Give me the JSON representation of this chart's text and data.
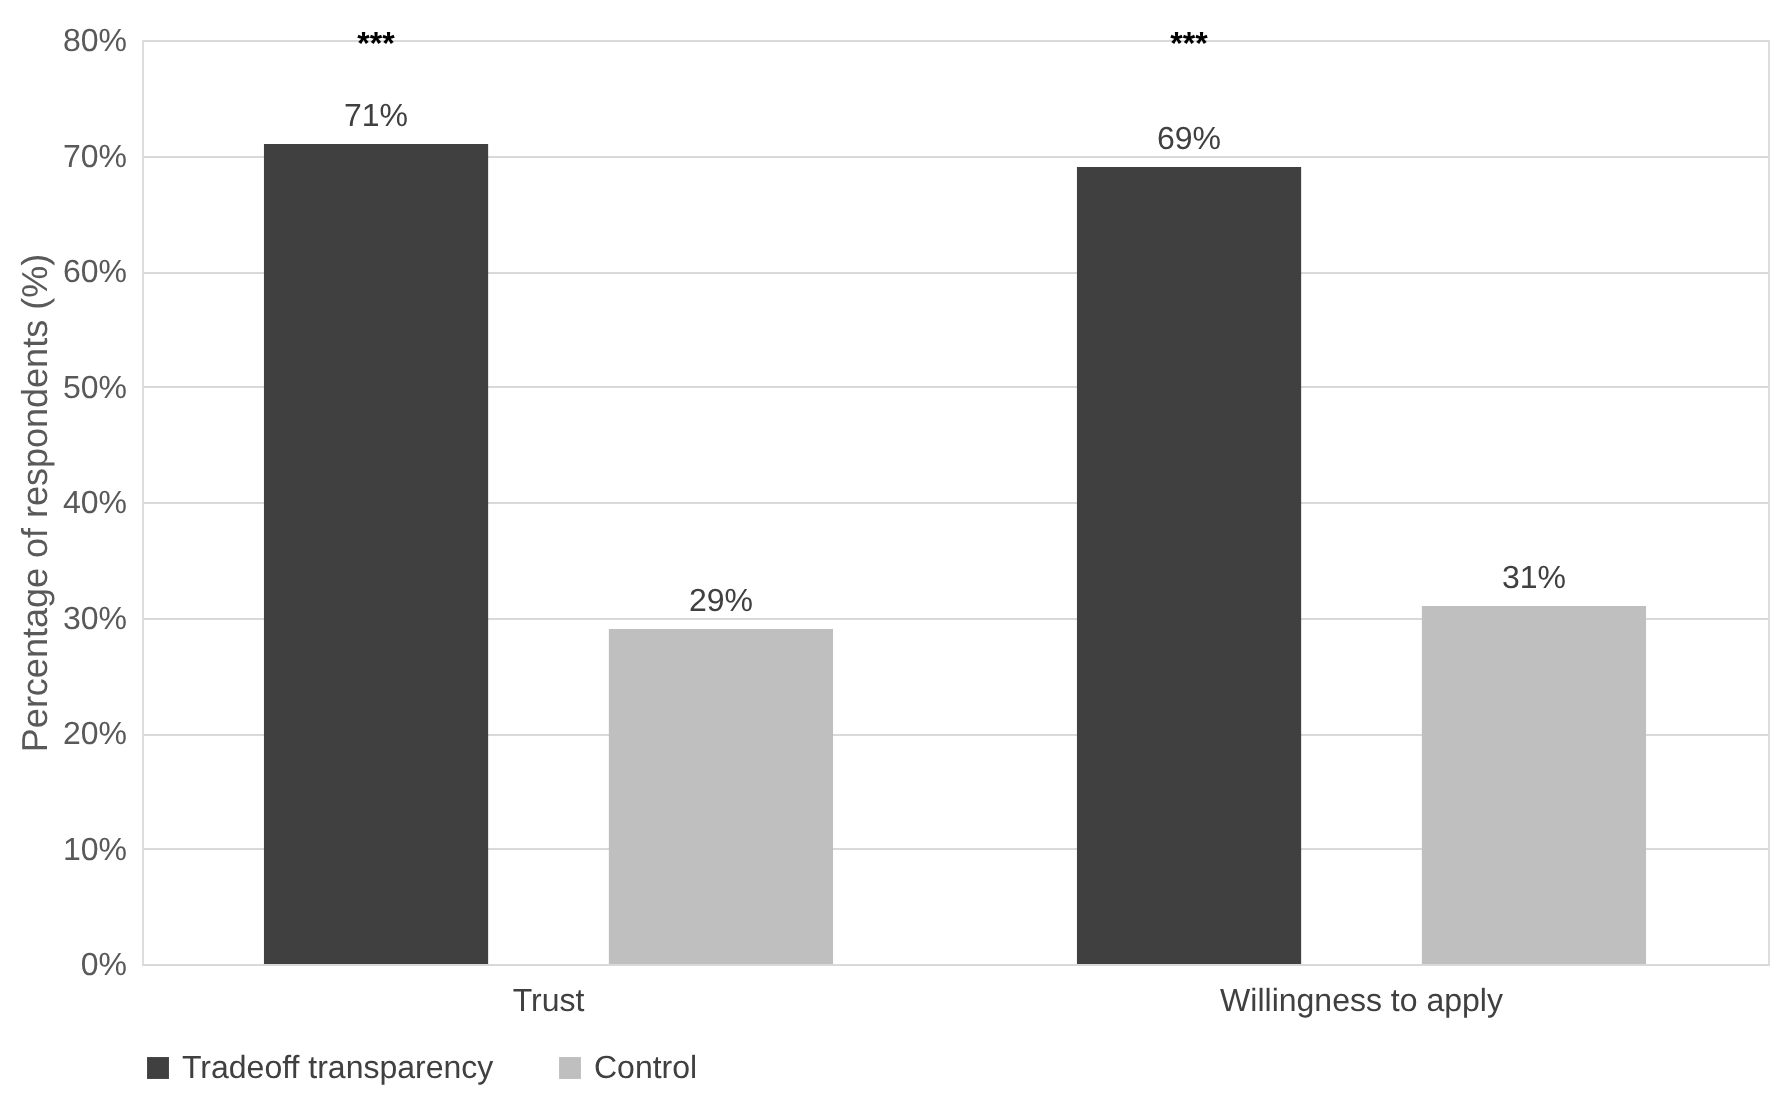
{
  "chart_data": {
    "type": "bar",
    "ylabel": "Percentage of respondents (%)",
    "categories": [
      "Trust",
      "Willingness to apply"
    ],
    "series": [
      {
        "name": "Tradeoff transparency",
        "color": "#404040",
        "values": [
          71,
          69
        ],
        "value_labels": [
          "71%",
          "69%"
        ]
      },
      {
        "name": "Control",
        "color": "#bfbfbf",
        "values": [
          29,
          31
        ],
        "value_labels": [
          "29%",
          "31%"
        ]
      }
    ],
    "ylim": [
      0,
      80
    ],
    "yticks": [
      {
        "value": 0,
        "label": "0%"
      },
      {
        "value": 10,
        "label": "10%"
      },
      {
        "value": 20,
        "label": "20%"
      },
      {
        "value": 30,
        "label": "30%"
      },
      {
        "value": 40,
        "label": "40%"
      },
      {
        "value": 50,
        "label": "50%"
      },
      {
        "value": 60,
        "label": "60%"
      },
      {
        "value": 70,
        "label": "70%"
      },
      {
        "value": 80,
        "label": "80%"
      }
    ],
    "annotations": [
      "***",
      "***"
    ],
    "grid": "y",
    "legend": "bottom"
  }
}
